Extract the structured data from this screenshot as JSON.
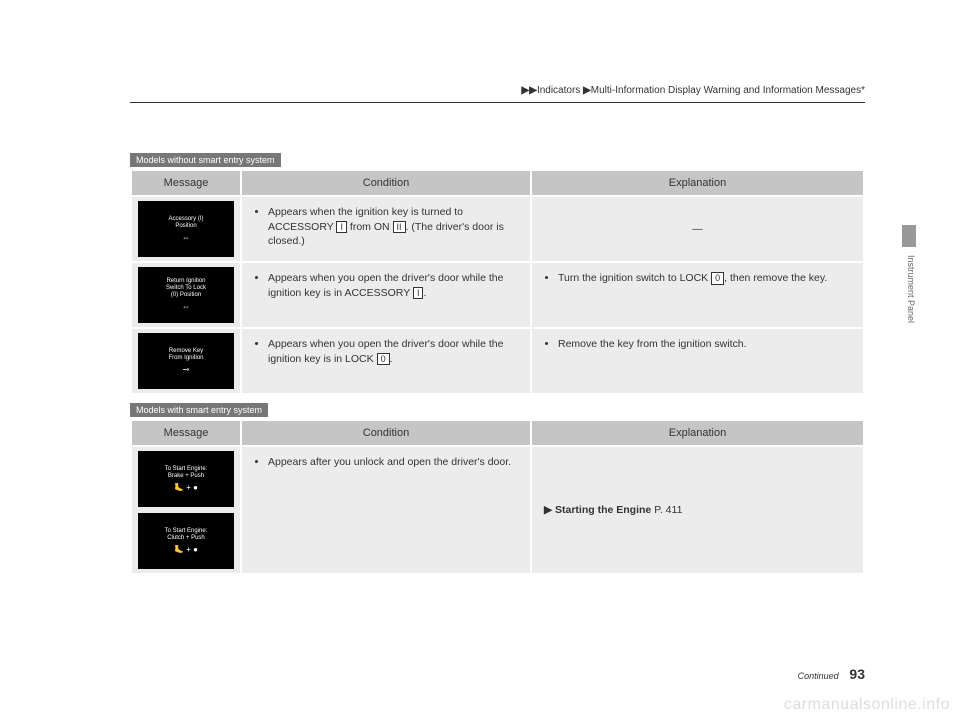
{
  "breadcrumb": {
    "part1": "Indicators",
    "part2": "Multi-Information Display Warning and Information Messages"
  },
  "section1": {
    "label": "Models without smart entry system",
    "headers": {
      "c1": "Message",
      "c2": "Condition",
      "c3": "Explanation"
    },
    "rows": [
      {
        "display": {
          "l1": "Accessory (I)",
          "l2": "Position",
          "icon": "⇔"
        },
        "cond_a": "Appears when the ignition key is turned to ACCESSORY ",
        "cond_box1": "I",
        "cond_b": " from ON ",
        "cond_box2": "II",
        "cond_c": ". (The driver's door is closed.)",
        "exp": "—"
      },
      {
        "display": {
          "l1": "Return Ignition",
          "l2": "Switch To Lock",
          "l3": "(0) Position",
          "icon": "⇔"
        },
        "cond_a": "Appears when you open the driver's door while the ignition key is in ACCESSORY ",
        "cond_box1": "I",
        "cond_b": ".",
        "exp_a": "Turn the ignition switch to LOCK ",
        "exp_box1": "0",
        "exp_b": ", then remove the key."
      },
      {
        "display": {
          "l1": "Remove Key",
          "l2": "From Ignition",
          "icon": "⊸"
        },
        "cond_a": "Appears when you open the driver's door while the ignition key is in LOCK ",
        "cond_box1": "0",
        "cond_b": ".",
        "exp": "Remove the key from the ignition switch."
      }
    ]
  },
  "section2": {
    "label": "Models with smart entry system",
    "headers": {
      "c1": "Message",
      "c2": "Condition",
      "c3": "Explanation"
    },
    "rows": [
      {
        "display1": {
          "l1": "To Start Engine:",
          "l2": "Brake + Push",
          "icon": "🦶 + ●"
        },
        "display2": {
          "l1": "To Start Engine:",
          "l2": "Clutch + Push",
          "icon": "🦶 + ●"
        },
        "cond": "Appears after you unlock and open the driver's door.",
        "exp_ref_label": "Starting the Engine",
        "exp_ref_page": "P. 411"
      }
    ]
  },
  "side": {
    "label": "Instrument Panel"
  },
  "footer": {
    "continued": "Continued",
    "page": "93"
  },
  "watermark": "carmanualsonline.info"
}
